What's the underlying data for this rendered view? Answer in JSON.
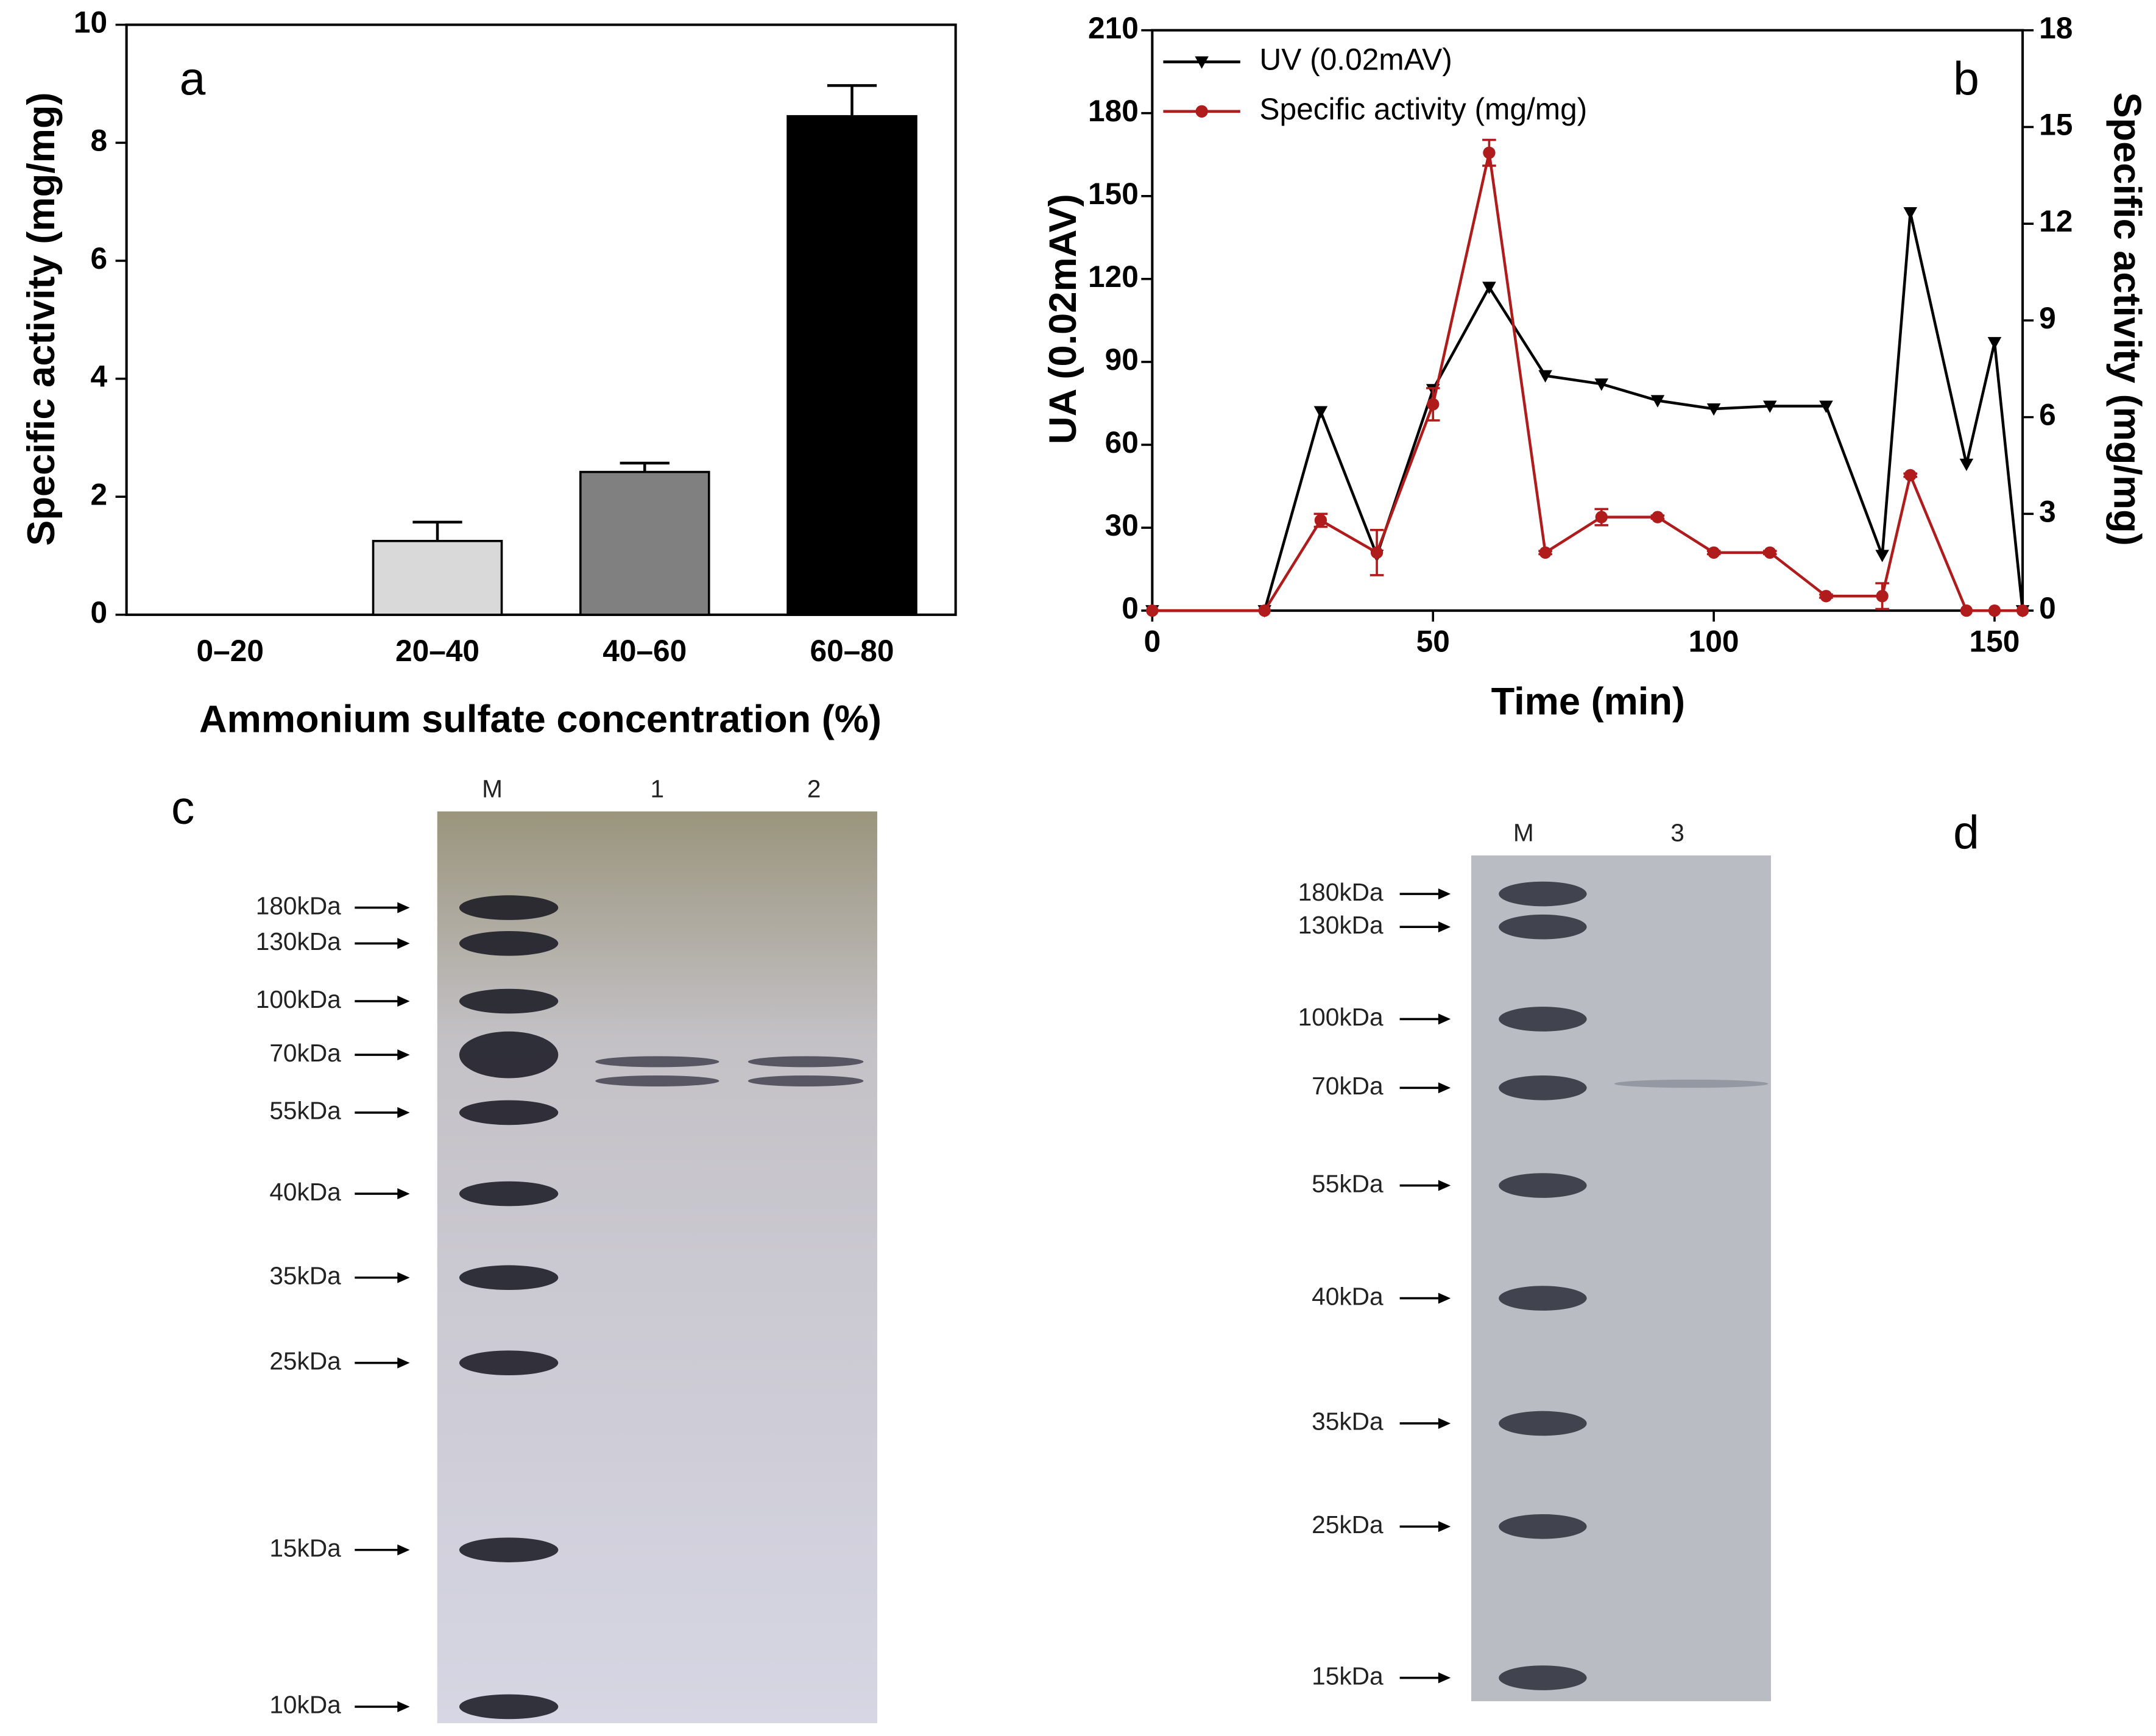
{
  "chart_data": [
    {
      "type": "bar",
      "panel_label": "a",
      "x_label": "Ammonium sulfate concentration (%)",
      "y_label": "Specific activity (mg/mg)",
      "categories": [
        "0–20",
        "20–40",
        "40–60",
        "60–80"
      ],
      "values": [
        0,
        1.25,
        2.42,
        8.45
      ],
      "errors": [
        0,
        0.32,
        0.15,
        0.52
      ],
      "colors": [
        "#d9d9d9",
        "#d9d9d9",
        "#808080",
        "#000000"
      ],
      "ylim": [
        0,
        10
      ],
      "yticks": [
        0,
        2,
        4,
        6,
        8,
        10
      ]
    },
    {
      "type": "line",
      "panel_label": "b",
      "x_label": "Time (min)",
      "y_label": "UA (0.02mAV)",
      "y2_label": "Specific activity (mg/mg)",
      "x": [
        0,
        20,
        30,
        40,
        50,
        60,
        70,
        80,
        90,
        100,
        110,
        120,
        130,
        135,
        145,
        150,
        155
      ],
      "series": [
        {
          "name": "UV (0.02mAV)",
          "color": "#000000",
          "marker": "triangle-down",
          "values": [
            0,
            0,
            72,
            20,
            80,
            117,
            85,
            82,
            76,
            73,
            74,
            74,
            20,
            144,
            53,
            97,
            0
          ]
        },
        {
          "name": "Specific activity (mg/mg)",
          "color": "#b01c1c",
          "marker": "circle",
          "axis": "y2",
          "values": [
            0,
            0,
            2.8,
            1.8,
            6.4,
            14.2,
            1.8,
            2.9,
            2.9,
            1.8,
            1.8,
            0.45,
            0.45,
            4.2,
            0,
            0,
            0
          ],
          "errors": [
            0,
            0,
            0.2,
            0.7,
            0.5,
            0.4,
            0.05,
            0.25,
            0.05,
            0.05,
            0.05,
            0.05,
            0.4,
            0.05,
            0,
            0,
            0
          ]
        }
      ],
      "xlim": [
        0,
        155
      ],
      "xticks": [
        0,
        50,
        100,
        150
      ],
      "ylim": [
        0,
        210
      ],
      "yticks": [
        0,
        30,
        60,
        90,
        120,
        150,
        180,
        210
      ],
      "y2lim": [
        0,
        18
      ],
      "y2ticks": [
        0,
        3,
        6,
        9,
        12,
        15,
        18
      ],
      "legend": "upper-left"
    }
  ],
  "gels": [
    {
      "panel_label": "c",
      "lanes": [
        "M",
        "1",
        "2"
      ],
      "markers": [
        "180kDa",
        "130kDa",
        "100kDa",
        "70kDa",
        "55kDa",
        "40kDa",
        "35kDa",
        "25kDa",
        "15kDa",
        "10kDa"
      ]
    },
    {
      "panel_label": "d",
      "lanes": [
        "M",
        "3"
      ],
      "markers": [
        "180kDa",
        "130kDa",
        "100kDa",
        "70kDa",
        "55kDa",
        "40kDa",
        "35kDa",
        "25kDa",
        "15kDa"
      ]
    }
  ]
}
